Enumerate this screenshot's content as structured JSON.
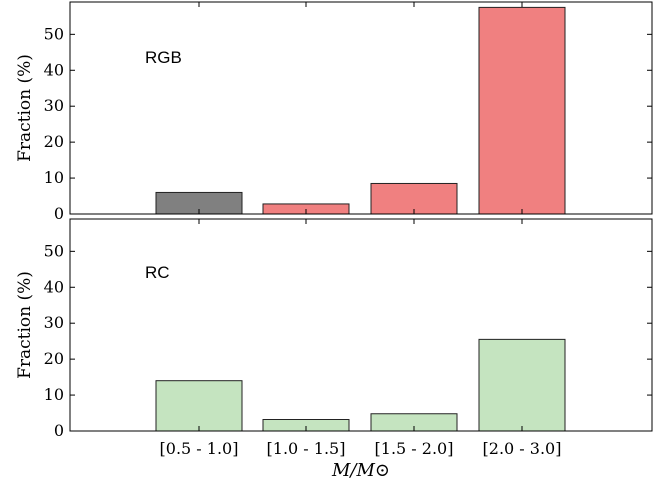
{
  "chart_data": [
    {
      "type": "bar",
      "panel_label": "RGB",
      "categories": [
        "[0.5 - 1.0]",
        "[1.0 - 1.5]",
        "[1.5 - 2.0]",
        "[2.0 - 3.0]"
      ],
      "values": [
        6.0,
        2.8,
        8.5,
        57.5
      ],
      "bar_colors": [
        "#808080",
        "#f08080",
        "#f08080",
        "#f08080"
      ],
      "ylabel": "Fraction (%)",
      "ylim": [
        0,
        59
      ],
      "yticks": [
        0,
        10,
        20,
        30,
        40,
        50
      ],
      "grid": false
    },
    {
      "type": "bar",
      "panel_label": "RC",
      "categories": [
        "[0.5 - 1.0]",
        "[1.0 - 1.5]",
        "[1.5 - 2.0]",
        "[2.0 - 3.0]"
      ],
      "values": [
        14.0,
        3.2,
        4.8,
        25.5
      ],
      "bar_colors": [
        "#c5e4c0",
        "#c5e4c0",
        "#c5e4c0",
        "#c5e4c0"
      ],
      "ylabel": "Fraction (%)",
      "ylim": [
        0,
        59
      ],
      "yticks": [
        0,
        10,
        20,
        30,
        40,
        50
      ],
      "xlabel": "M/M⊙",
      "grid": false
    }
  ]
}
